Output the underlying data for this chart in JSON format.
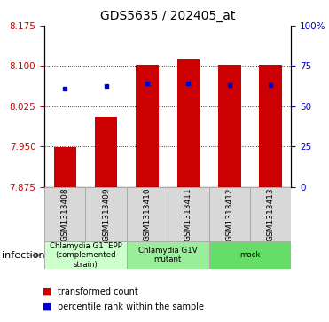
{
  "title": "GDS5635 / 202405_at",
  "samples": [
    "GSM1313408",
    "GSM1313409",
    "GSM1313410",
    "GSM1313411",
    "GSM1313412",
    "GSM1313413"
  ],
  "bar_bottoms": [
    7.875,
    7.875,
    7.875,
    7.875,
    7.875,
    7.875
  ],
  "bar_tops": [
    7.948,
    8.005,
    8.103,
    8.113,
    8.102,
    8.102
  ],
  "percentile_values": [
    8.058,
    8.063,
    8.068,
    8.068,
    8.065,
    8.065
  ],
  "ylim_left": [
    7.875,
    8.175
  ],
  "yticks_left": [
    7.875,
    7.95,
    8.025,
    8.1,
    8.175
  ],
  "ylim_right": [
    0,
    100
  ],
  "yticks_right": [
    0,
    25,
    50,
    75,
    100
  ],
  "ytick_labels_right": [
    "0",
    "25",
    "50",
    "75",
    "100%"
  ],
  "bar_color": "#cc0000",
  "dot_color": "#0000cc",
  "group_labels": [
    "Chlamydia G1TEPP\n(complemented\nstrain)",
    "Chlamydia G1V\nmutant",
    "mock"
  ],
  "group_colors": [
    "#ccffcc",
    "#99ee99",
    "#66dd66"
  ],
  "infection_label": "infection",
  "legend_red": "transformed count",
  "legend_blue": "percentile rank within the sample",
  "bar_width": 0.55,
  "left_color": "#cc0000",
  "right_color": "#0000cc"
}
